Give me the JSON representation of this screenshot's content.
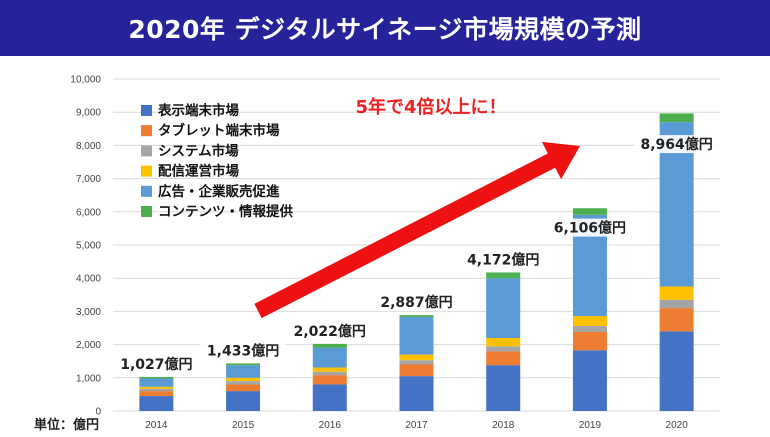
{
  "header": {
    "title": "2020年 デジタルサイネージ市場規模の予測"
  },
  "unit_label": "単位：億円",
  "annotation": "5年で4倍以上に！",
  "colors": {
    "banner": "#26239a",
    "arrow": "#ee1111",
    "annotation": "#ee2222"
  },
  "chart_data": {
    "type": "bar",
    "stacked": true,
    "categories": [
      "2014",
      "2015",
      "2016",
      "2017",
      "2018",
      "2019",
      "2020"
    ],
    "ylim": [
      0,
      10000
    ],
    "yticks": [
      "0",
      "1,000",
      "2,000",
      "3,000",
      "4,000",
      "5,000",
      "6,000",
      "7,000",
      "8,000",
      "9,000",
      "10,000"
    ],
    "grid": true,
    "legend_position": "top-left",
    "series": [
      {
        "name": "表示端末市場",
        "color": "#4472c4",
        "values": [
          450,
          600,
          800,
          1050,
          1380,
          1830,
          2400
        ]
      },
      {
        "name": "タブレット端末市場",
        "color": "#ed7d31",
        "values": [
          150,
          200,
          280,
          350,
          420,
          550,
          700
        ]
      },
      {
        "name": "システム市場",
        "color": "#a5a5a5",
        "values": [
          70,
          100,
          100,
          130,
          150,
          180,
          250
        ]
      },
      {
        "name": "配信運営市場",
        "color": "#ffc000",
        "values": [
          60,
          100,
          130,
          170,
          250,
          300,
          400
        ]
      },
      {
        "name": "広告・企業販売促進",
        "color": "#5b9bd5",
        "values": [
          250,
          380,
          600,
          1130,
          1800,
          3050,
          4950
        ]
      },
      {
        "name": "コンテンツ・情報提供",
        "color": "#4cae4c",
        "values": [
          47,
          53,
          112,
          57,
          172,
          196,
          264
        ]
      }
    ],
    "totals": [
      "1,027億円",
      "1,433億円",
      "2,022億円",
      "2,887億円",
      "4,172億円",
      "6,106億円",
      "8,964億円"
    ]
  }
}
